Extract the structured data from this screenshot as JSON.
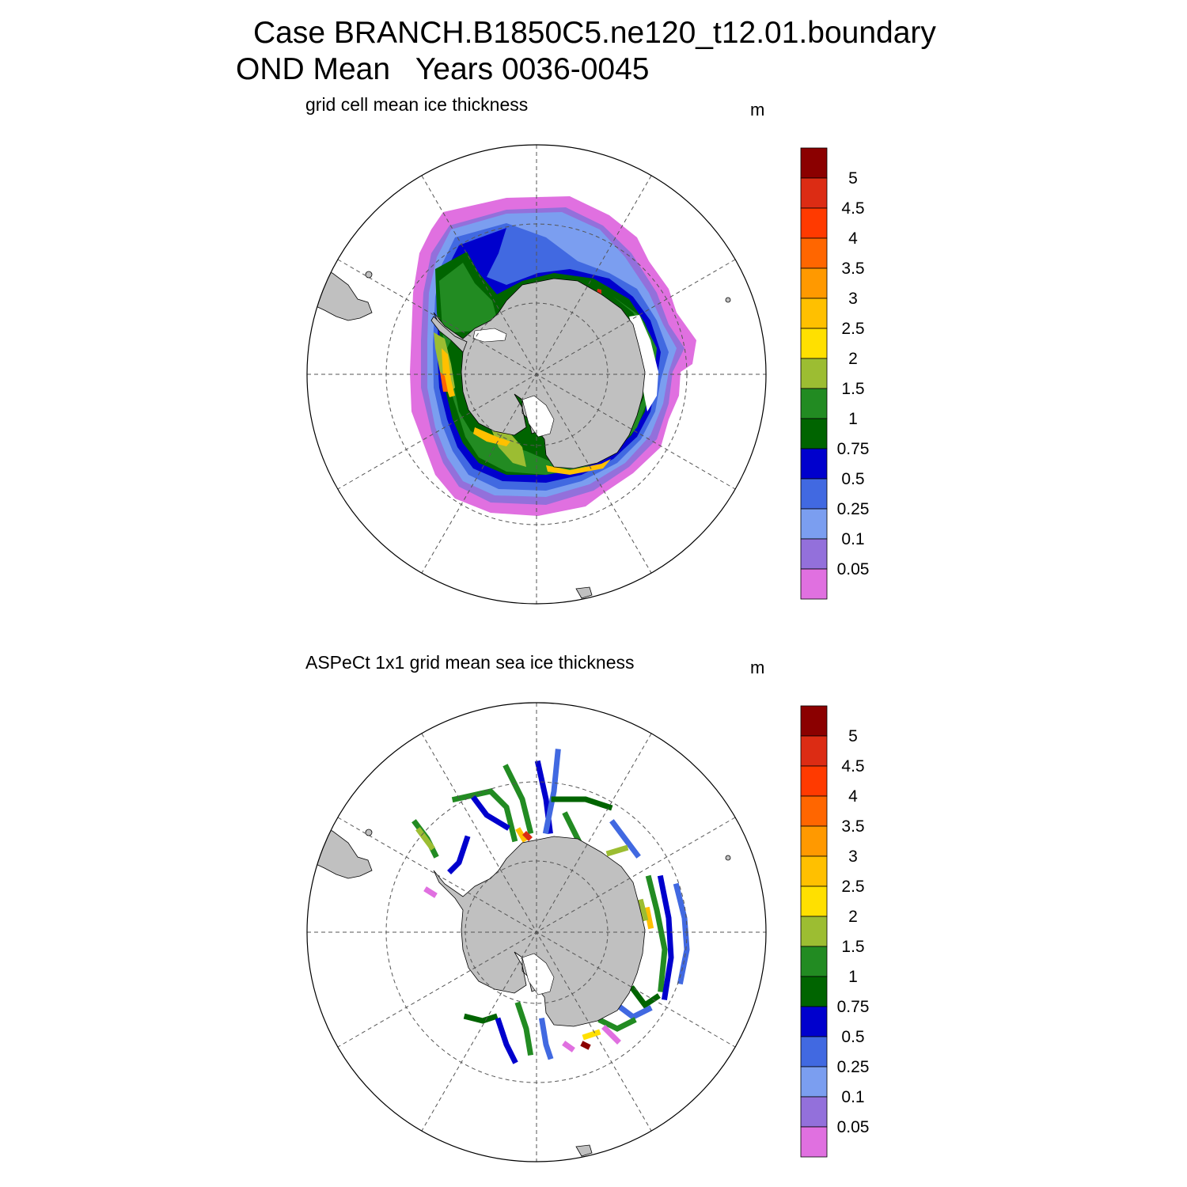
{
  "header": {
    "title_line1": "Case BRANCH.B1850C5.ne120_t12.01.boundary",
    "title_line2": "OND Mean   Years 0036-0045"
  },
  "panels": [
    {
      "subtitle": "grid cell mean ice thickness",
      "unit": "m",
      "kind": "model"
    },
    {
      "subtitle": "ASPeCt 1x1 grid mean sea ice thickness",
      "unit": "m",
      "kind": "observations"
    }
  ],
  "colorbar": {
    "labels": [
      "5",
      "4.5",
      "4",
      "3.5",
      "3",
      "2.5",
      "2",
      "1.5",
      "1",
      "0.75",
      "0.5",
      "0.25",
      "0.1",
      "0.05"
    ],
    "colors_top_to_bottom": [
      "#8b0000",
      "#dc2c14",
      "#ff3a00",
      "#ff6600",
      "#ff9900",
      "#ffc000",
      "#ffe000",
      "#9cbd32",
      "#228b22",
      "#006400",
      "#0000cd",
      "#4169e1",
      "#7b9ef0",
      "#9370db",
      "#e070e0"
    ]
  },
  "colors": {
    "land": "#c0c0c0",
    "background": "#ffffff"
  }
}
